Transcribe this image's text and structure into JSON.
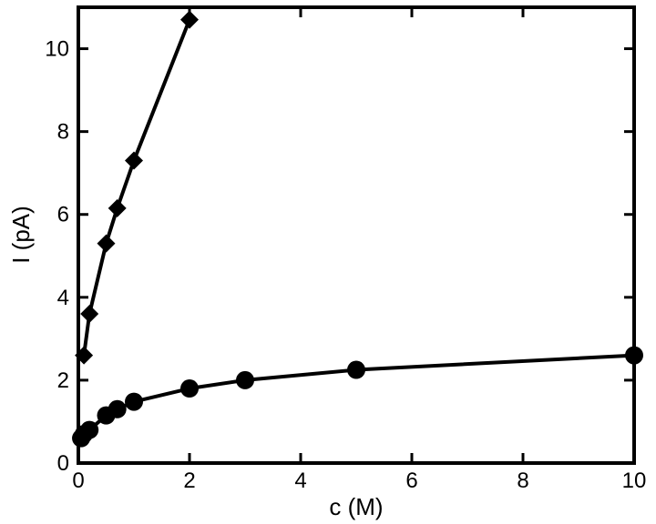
{
  "chart_data": {
    "type": "line",
    "title": "",
    "xlabel": "c (M)",
    "ylabel": "I (pA)",
    "xlim": [
      0,
      10
    ],
    "ylim": [
      0,
      11
    ],
    "xticks": [
      0,
      2,
      4,
      6,
      8,
      10
    ],
    "yticks": [
      0,
      2,
      4,
      6,
      8,
      10
    ],
    "grid": false,
    "series": [
      {
        "marker": "diamond",
        "color": "#000000",
        "x": [
          0.1,
          0.2,
          0.5,
          0.7,
          1.0,
          2.0
        ],
        "y": [
          2.6,
          3.6,
          5.3,
          6.15,
          7.3,
          10.7
        ]
      },
      {
        "marker": "circle",
        "color": "#000000",
        "x": [
          0.05,
          0.1,
          0.2,
          0.5,
          0.7,
          1.0,
          2.0,
          3.0,
          5.0,
          10.0
        ],
        "y": [
          0.6,
          0.7,
          0.8,
          1.15,
          1.3,
          1.48,
          1.8,
          2.0,
          2.25,
          2.6
        ]
      }
    ]
  }
}
